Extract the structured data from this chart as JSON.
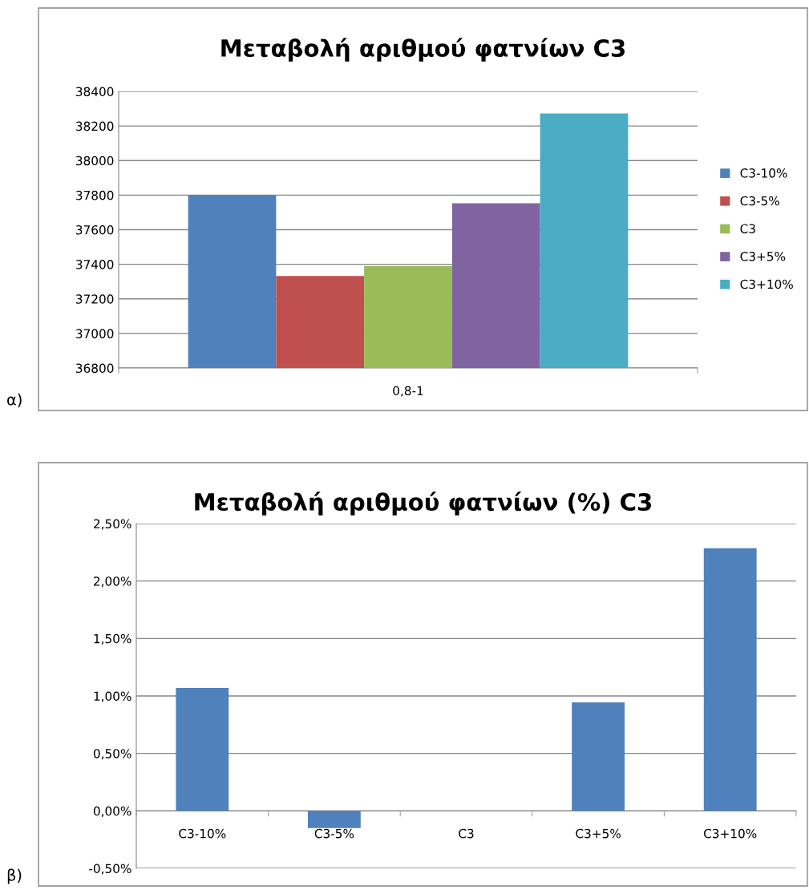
{
  "chart_data": [
    {
      "type": "bar",
      "title": "Μεταβολή αριθμού φατνίων C3",
      "categories": [
        "0,8-1"
      ],
      "series": [
        {
          "name": "C3-10%",
          "color": "#4f81bd",
          "values": [
            37800
          ]
        },
        {
          "name": "C3-5%",
          "color": "#c0504d",
          "values": [
            37332
          ]
        },
        {
          "name": "C3",
          "color": "#9bbb59",
          "values": [
            37390
          ]
        },
        {
          "name": "C3+5%",
          "color": "#8064a2",
          "values": [
            37753
          ]
        },
        {
          "name": "C3+10%",
          "color": "#4bacc6",
          "values": [
            38272
          ]
        }
      ],
      "ylim": [
        36800,
        38400
      ],
      "yticks": [
        36800,
        37000,
        37200,
        37400,
        37600,
        37800,
        38000,
        38200,
        38400
      ],
      "grid": "y",
      "legend": "right",
      "annotations": [
        "α)"
      ]
    },
    {
      "type": "bar",
      "title": "Μεταβολή αριθμού φατνίων (%) C3",
      "categories": [
        "C3-10%",
        "C3-5%",
        "C3",
        "C3+5%",
        "C3+10%"
      ],
      "values": [
        1.07,
        -0.15,
        0,
        0.945,
        2.286
      ],
      "color": "#4f81bd",
      "ylim": [
        -0.5,
        2.5
      ],
      "yticks": [
        {
          "value": -0.5,
          "label": "-0,50%"
        },
        {
          "value": 0,
          "label": "0,00%"
        },
        {
          "value": 0.5,
          "label": "0,50%"
        },
        {
          "value": 1.0,
          "label": "1,00%"
        },
        {
          "value": 1.5,
          "label": "1,50%"
        },
        {
          "value": 2.0,
          "label": "2,00%"
        },
        {
          "value": 2.5,
          "label": "2,50%"
        }
      ],
      "grid": "y",
      "annotations": [
        "β)"
      ]
    }
  ]
}
